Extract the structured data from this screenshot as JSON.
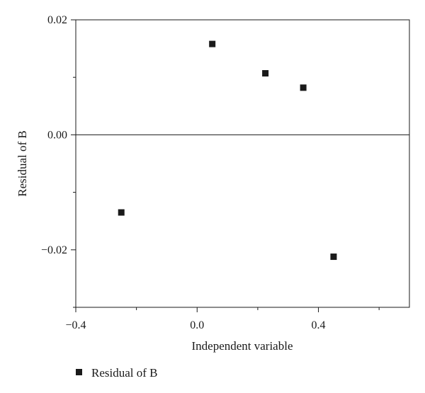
{
  "chart_data": {
    "type": "scatter",
    "xlabel": "Independent variable",
    "ylabel": "Residual of B",
    "xlim": [
      -0.4,
      0.7
    ],
    "ylim": [
      -0.03,
      0.02
    ],
    "x_ticks": [
      -0.4,
      0.0,
      0.4
    ],
    "x_tick_labels": [
      "−0.4",
      "0.0",
      "0.4"
    ],
    "y_ticks": [
      -0.02,
      0.0,
      0.02
    ],
    "y_tick_labels": [
      "−0.02",
      "0.00",
      "0.02"
    ],
    "zero_line": true,
    "grid": false,
    "legend_position": "bottom-left",
    "series": [
      {
        "name": "Residual of B",
        "color": "#1a1a1a",
        "marker": "square",
        "x": [
          -0.25,
          0.05,
          0.225,
          0.35,
          0.45
        ],
        "y": [
          -0.0135,
          0.0158,
          0.0107,
          0.0082,
          -0.0212
        ]
      }
    ]
  }
}
